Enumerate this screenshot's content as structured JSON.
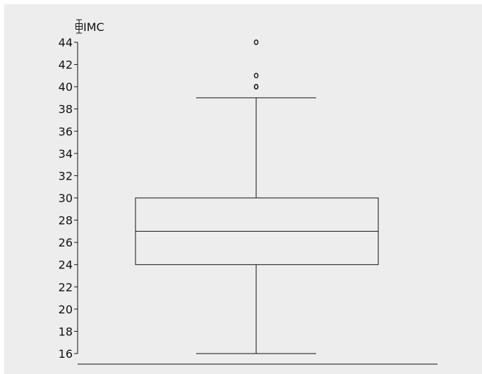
{
  "chart_data": {
    "type": "box",
    "ylabel": "IMC",
    "ylim": [
      16,
      44
    ],
    "yticks": [
      "16",
      "18",
      "20",
      "22",
      "24",
      "26",
      "28",
      "30",
      "32",
      "34",
      "36",
      "38",
      "40",
      "42",
      "44"
    ],
    "series": [
      {
        "whisker_low": 16,
        "q1": 24,
        "median": 27,
        "q3": 30,
        "whisker_high": 39,
        "outliers": [
          40,
          40,
          41,
          44
        ]
      }
    ],
    "grid": false,
    "legend": "none"
  }
}
